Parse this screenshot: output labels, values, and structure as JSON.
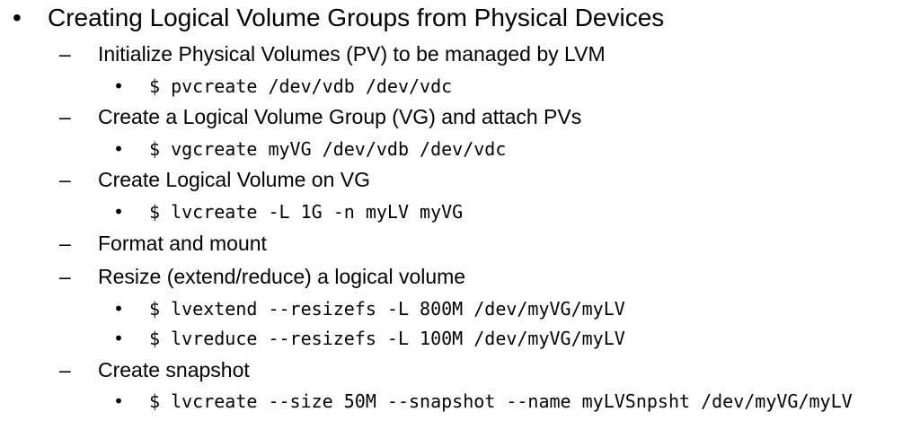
{
  "slide": {
    "title": "Creating Logical Volume Groups from Physical Devices",
    "items": [
      {
        "text": "Initialize Physical Volumes (PV) to be managed by LVM",
        "commands": [
          "$ pvcreate /dev/vdb /dev/vdc"
        ]
      },
      {
        "text": "Create a Logical Volume Group (VG) and attach PVs",
        "commands": [
          "$ vgcreate myVG /dev/vdb /dev/vdc"
        ]
      },
      {
        "text": "Create Logical Volume on VG",
        "commands": [
          "$ lvcreate -L 1G -n myLV myVG"
        ]
      },
      {
        "text": "Format and mount",
        "commands": []
      },
      {
        "text": "Resize (extend/reduce) a logical volume",
        "commands": [
          "$ lvextend --resizefs -L 800M /dev/myVG/myLV",
          "$ lvreduce --resizefs -L 100M /dev/myVG/myLV"
        ]
      },
      {
        "text": "Create snapshot",
        "commands": [
          "$ lvcreate --size 50M --snapshot --name myLVSnpsht /dev/myVG/myLV"
        ]
      }
    ]
  }
}
